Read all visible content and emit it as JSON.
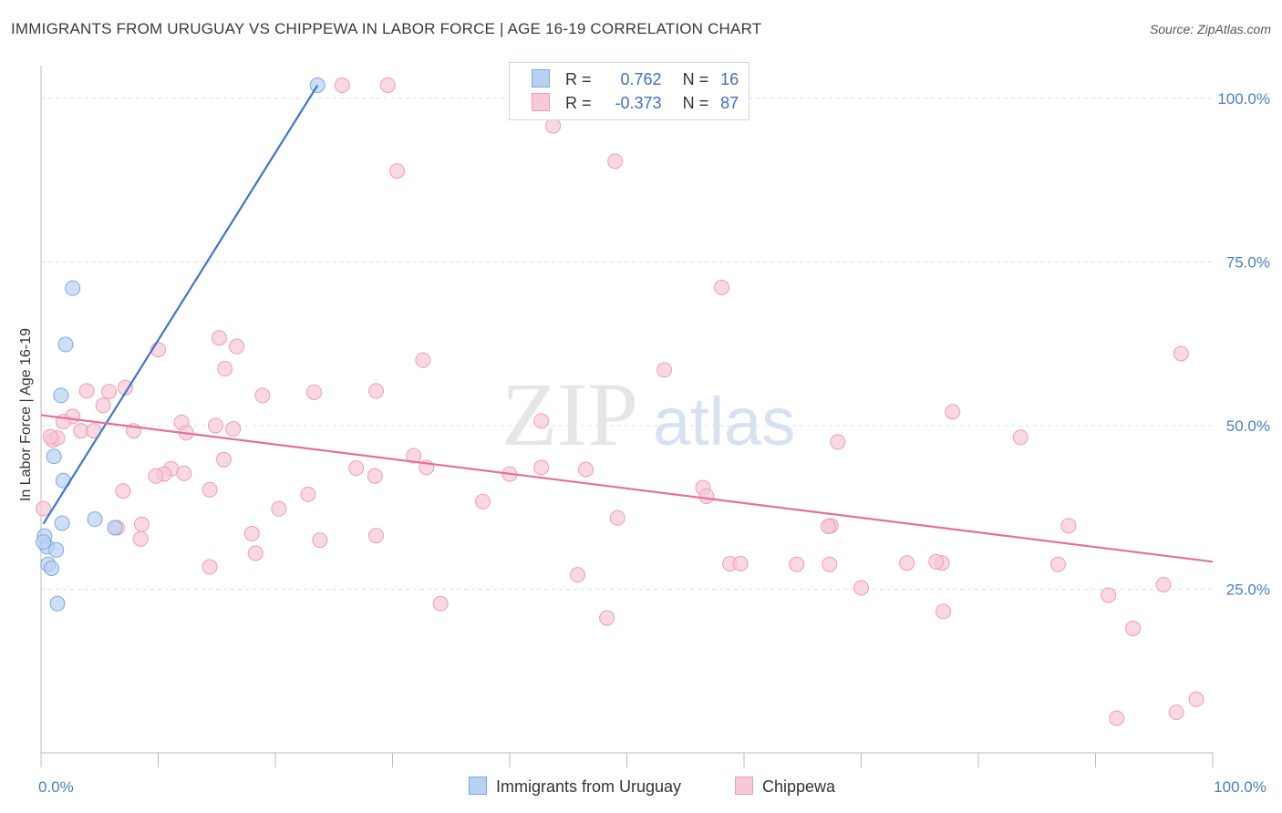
{
  "header": {
    "title": "IMMIGRANTS FROM URUGUAY VS CHIPPEWA IN LABOR FORCE | AGE 16-19 CORRELATION CHART",
    "source": "Source: ZipAtlas.com"
  },
  "watermark": {
    "part1": "ZIP",
    "part2": "atlas"
  },
  "legend_top": {
    "rows": [
      {
        "r_label": "R =",
        "r_value": "0.762",
        "n_label": "N =",
        "n_value": "16"
      },
      {
        "r_label": "R =",
        "r_value": "-0.373",
        "n_label": "N =",
        "n_value": "87"
      }
    ]
  },
  "legend_bottom": {
    "items": [
      {
        "label": "Immigrants from Uruguay"
      },
      {
        "label": "Chippewa"
      }
    ]
  },
  "colors": {
    "uruguay_fill": "#b7d1f3",
    "uruguay_stroke": "#7ea8de",
    "uruguay_line": "#3a78d0",
    "chippewa_fill": "#f8c8d6",
    "chippewa_stroke": "#ee9db5",
    "chippewa_line": "#e5709b",
    "tick_label": "#4a7fc8",
    "grid": "#dddddd"
  },
  "chart_data": {
    "type": "scatter",
    "ylabel": "In Labor Force | Age 16-19",
    "xlim": [
      0,
      100
    ],
    "ylim": [
      0,
      105
    ],
    "x_tick_labels": [
      {
        "value": 0,
        "label": "0.0%"
      },
      {
        "value": 100,
        "label": "100.0%"
      }
    ],
    "y_tick_labels": [
      {
        "value": 25,
        "label": "25.0%"
      },
      {
        "value": 50,
        "label": "50.0%"
      },
      {
        "value": 75,
        "label": "75.0%"
      },
      {
        "value": 100,
        "label": "100.0%"
      }
    ],
    "grid": "horizontal-dashed",
    "series": [
      {
        "name": "Immigrants from Uruguay",
        "points": [
          [
            23.6,
            102.0
          ],
          [
            2.7,
            71.0
          ],
          [
            2.1,
            62.4
          ],
          [
            1.7,
            54.6
          ],
          [
            1.1,
            45.3
          ],
          [
            1.9,
            41.6
          ],
          [
            4.6,
            35.7
          ],
          [
            1.8,
            35.1
          ],
          [
            6.3,
            34.4
          ],
          [
            0.3,
            33.1
          ],
          [
            0.5,
            31.5
          ],
          [
            1.3,
            31.0
          ],
          [
            0.6,
            28.8
          ],
          [
            0.9,
            28.2
          ],
          [
            1.4,
            22.8
          ],
          [
            0.2,
            32.2
          ]
        ],
        "trendline": {
          "x": [
            0.2,
            23.6
          ],
          "y": [
            35.0,
            102.0
          ]
        }
      },
      {
        "name": "Chippewa",
        "points": [
          [
            25.7,
            102.0
          ],
          [
            29.6,
            102.0
          ],
          [
            43.7,
            95.8
          ],
          [
            49.0,
            90.4
          ],
          [
            30.4,
            88.9
          ],
          [
            58.1,
            71.1
          ],
          [
            97.3,
            61.0
          ],
          [
            15.2,
            63.4
          ],
          [
            16.7,
            62.1
          ],
          [
            10.0,
            61.6
          ],
          [
            32.6,
            60.0
          ],
          [
            15.7,
            58.7
          ],
          [
            53.2,
            58.5
          ],
          [
            7.2,
            55.8
          ],
          [
            3.9,
            55.3
          ],
          [
            5.8,
            55.2
          ],
          [
            23.3,
            55.1
          ],
          [
            28.6,
            55.3
          ],
          [
            18.9,
            54.6
          ],
          [
            5.3,
            53.1
          ],
          [
            77.8,
            52.1
          ],
          [
            2.7,
            51.4
          ],
          [
            1.9,
            50.6
          ],
          [
            12.0,
            50.5
          ],
          [
            14.9,
            50.0
          ],
          [
            3.4,
            49.2
          ],
          [
            4.5,
            49.2
          ],
          [
            7.9,
            49.2
          ],
          [
            12.4,
            48.9
          ],
          [
            16.4,
            49.5
          ],
          [
            1.0,
            47.8
          ],
          [
            1.4,
            48.1
          ],
          [
            0.8,
            48.3
          ],
          [
            68.0,
            47.5
          ],
          [
            83.6,
            48.2
          ],
          [
            42.7,
            50.7
          ],
          [
            15.6,
            44.8
          ],
          [
            31.8,
            45.4
          ],
          [
            11.1,
            43.4
          ],
          [
            26.9,
            43.5
          ],
          [
            42.7,
            43.6
          ],
          [
            32.9,
            43.6
          ],
          [
            10.5,
            42.6
          ],
          [
            28.5,
            42.3
          ],
          [
            9.8,
            42.3
          ],
          [
            12.2,
            42.7
          ],
          [
            46.5,
            43.3
          ],
          [
            40.0,
            42.6
          ],
          [
            14.4,
            40.2
          ],
          [
            56.5,
            40.5
          ],
          [
            7.0,
            40.0
          ],
          [
            22.8,
            39.5
          ],
          [
            37.7,
            38.4
          ],
          [
            20.3,
            37.3
          ],
          [
            0.2,
            37.3
          ],
          [
            56.8,
            39.2
          ],
          [
            49.2,
            35.9
          ],
          [
            8.6,
            34.9
          ],
          [
            6.5,
            34.4
          ],
          [
            18.0,
            33.5
          ],
          [
            87.7,
            34.7
          ],
          [
            67.4,
            34.7
          ],
          [
            67.2,
            34.6
          ],
          [
            23.8,
            32.5
          ],
          [
            28.6,
            33.2
          ],
          [
            8.5,
            32.7
          ],
          [
            18.3,
            30.5
          ],
          [
            58.8,
            28.9
          ],
          [
            64.5,
            28.8
          ],
          [
            73.9,
            29.0
          ],
          [
            76.9,
            29.0
          ],
          [
            86.8,
            28.8
          ],
          [
            67.3,
            28.8
          ],
          [
            14.4,
            28.4
          ],
          [
            45.8,
            27.2
          ],
          [
            76.4,
            29.2
          ],
          [
            59.7,
            28.9
          ],
          [
            70.0,
            25.2
          ],
          [
            95.8,
            25.7
          ],
          [
            91.1,
            24.1
          ],
          [
            34.1,
            22.8
          ],
          [
            77.0,
            21.6
          ],
          [
            48.3,
            20.6
          ],
          [
            93.2,
            19.0
          ],
          [
            98.6,
            8.2
          ],
          [
            91.8,
            5.3
          ],
          [
            96.9,
            6.2
          ]
        ],
        "trendline": {
          "x": [
            0,
            100
          ],
          "y": [
            51.6,
            29.2
          ]
        }
      }
    ]
  }
}
